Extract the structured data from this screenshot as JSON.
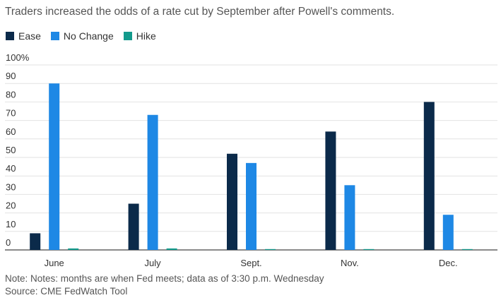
{
  "title": "Traders increased the odds of a rate cut by September after Powell's comments.",
  "legend": [
    {
      "label": "Ease",
      "color": "#0b2a4a"
    },
    {
      "label": "No Change",
      "color": "#1e88e5"
    },
    {
      "label": "Hike",
      "color": "#139a8c"
    }
  ],
  "chart_data": {
    "type": "bar",
    "categories": [
      "June",
      "July",
      "Sept.",
      "Nov.",
      "Dec."
    ],
    "series": [
      {
        "name": "Ease",
        "color": "#0b2a4a",
        "values": [
          9,
          25,
          52,
          64,
          80
        ]
      },
      {
        "name": "No Change",
        "color": "#1e88e5",
        "values": [
          90,
          73,
          47,
          35,
          19
        ]
      },
      {
        "name": "Hike",
        "color": "#139a8c",
        "values": [
          0.8,
          0.8,
          0.4,
          0.4,
          0.4
        ]
      }
    ],
    "ylim": [
      0,
      100
    ],
    "y_ticks": [
      "0",
      "10",
      "20",
      "30",
      "40",
      "50",
      "60",
      "70",
      "80",
      "90",
      "100%"
    ],
    "grid": true,
    "legend_position": "top-left"
  },
  "notes": {
    "note": "Note: Notes: months are when Fed meets; data as of 3:30 p.m. Wednesday",
    "source": "Source: CME FedWatch Tool"
  }
}
